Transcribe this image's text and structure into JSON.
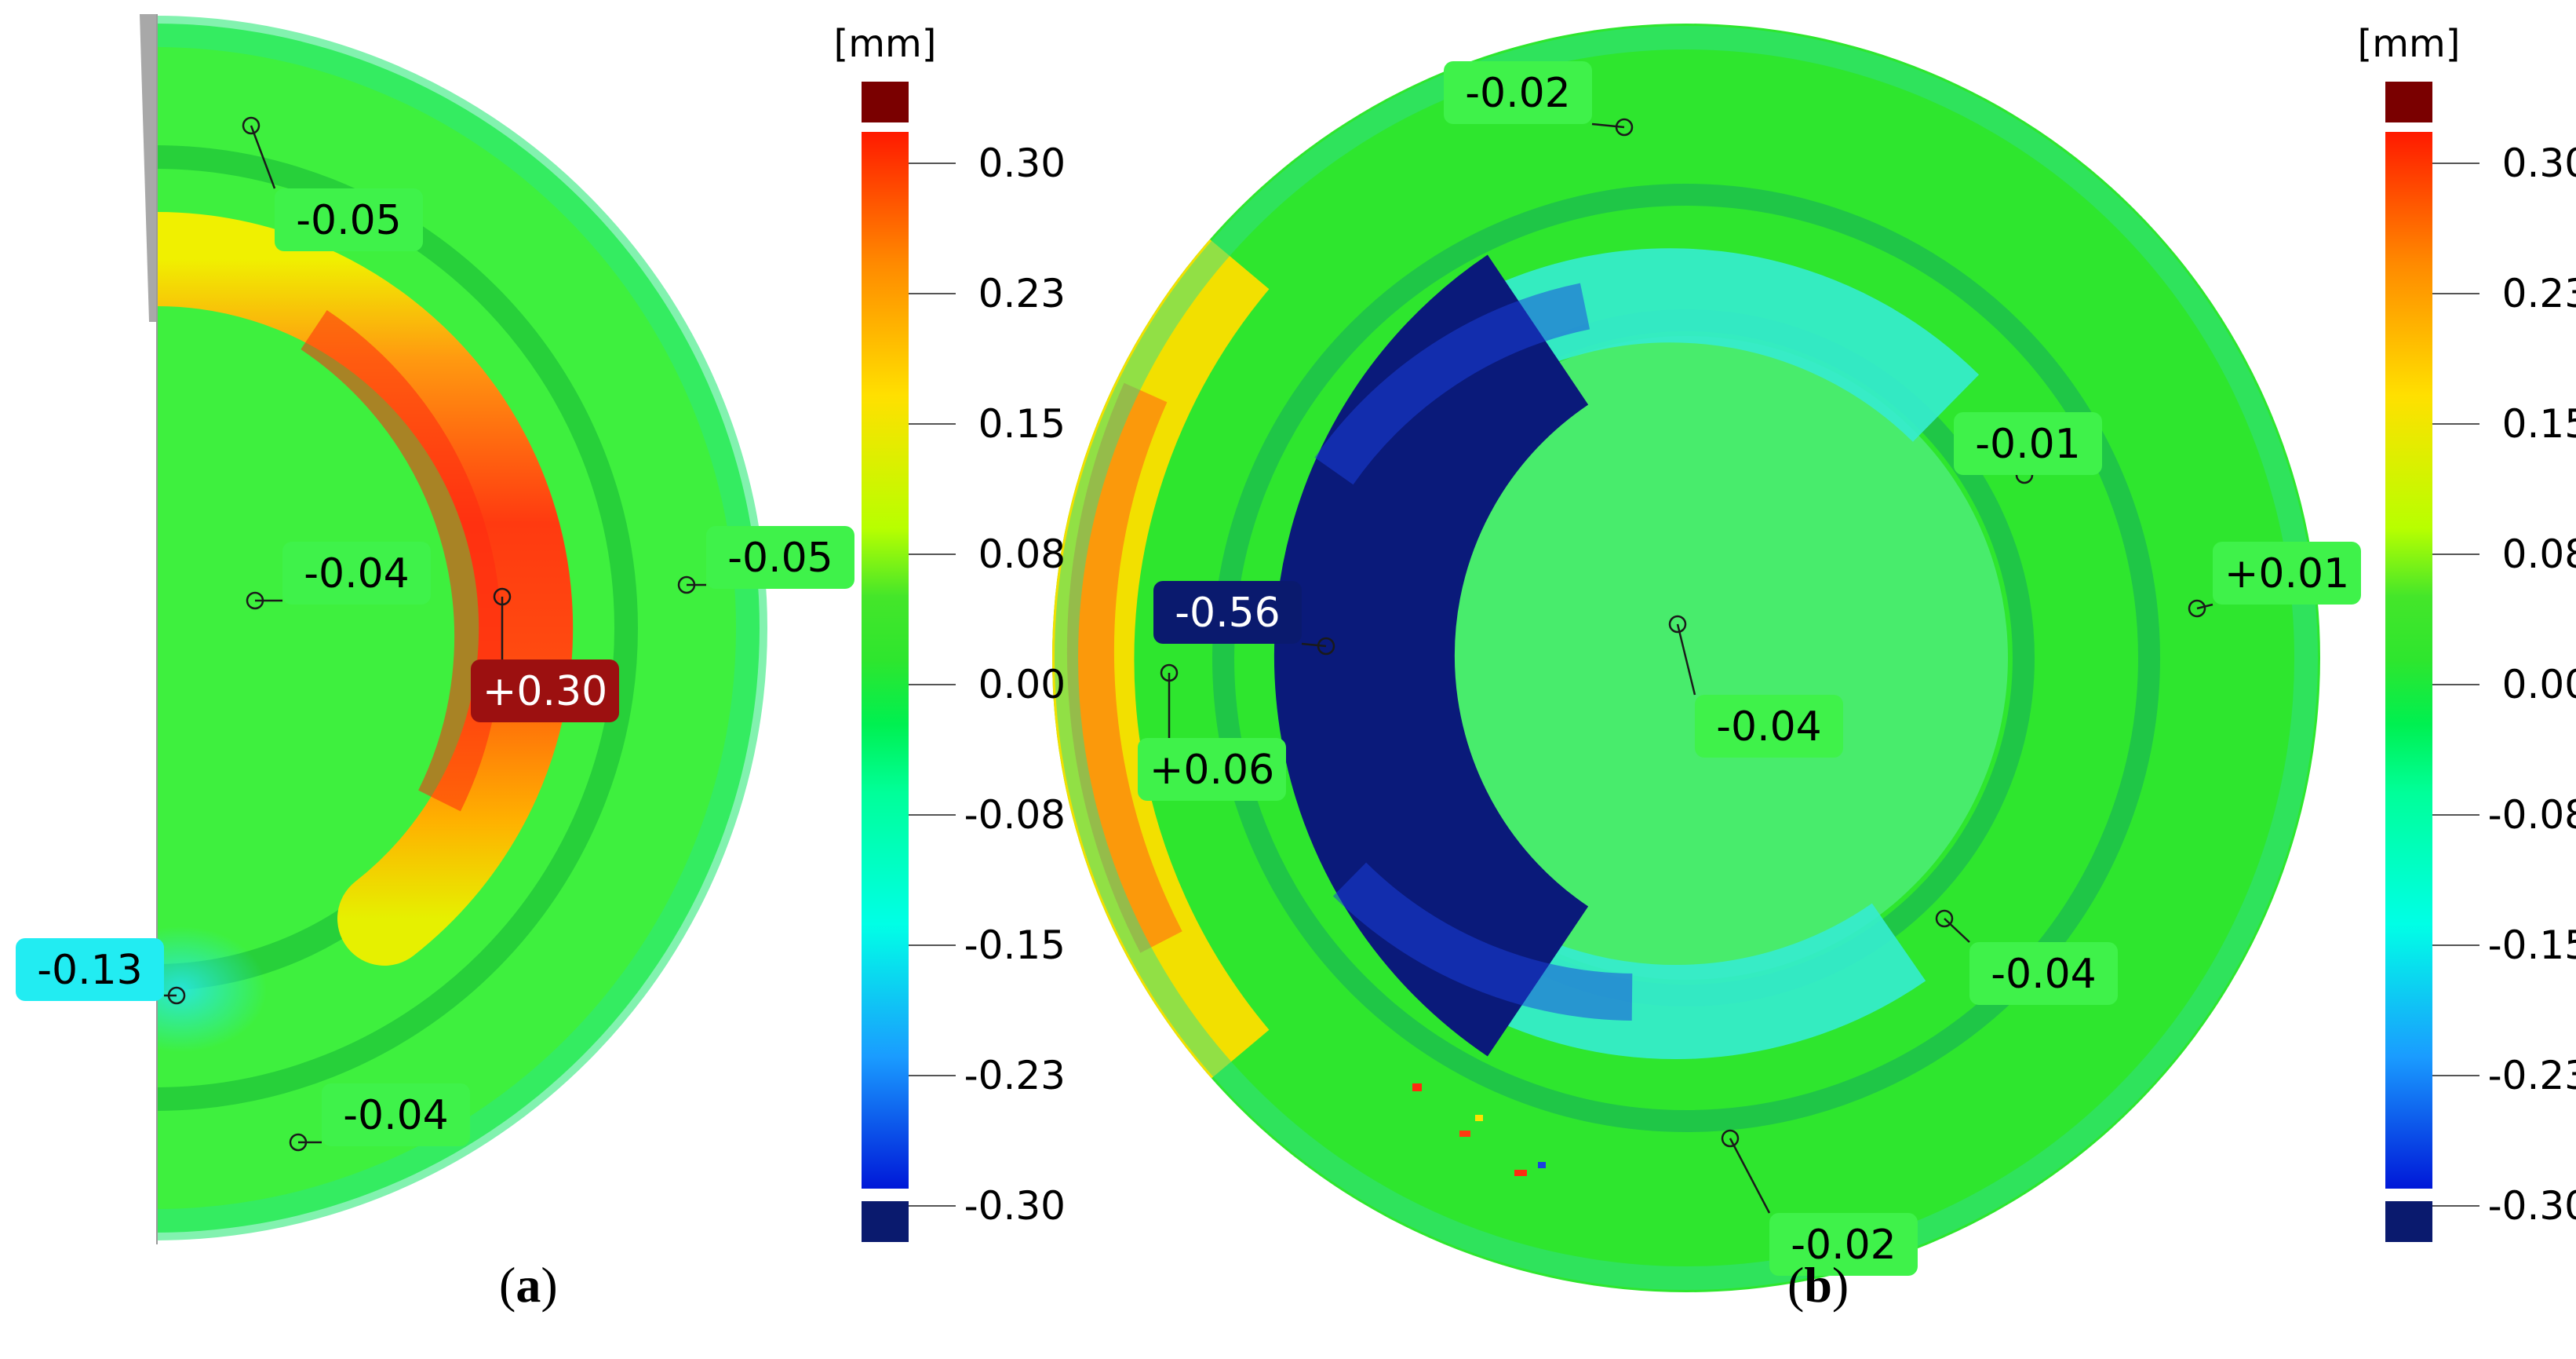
{
  "figure": {
    "unit": "[mm]",
    "scale_ticks": [
      "0.30",
      "0.23",
      "0.15",
      "0.08",
      "0.00",
      "-0.08",
      "-0.15",
      "-0.23",
      "-0.30"
    ],
    "colors": {
      "over": "#7a0000",
      "under": "#0a1a6e",
      "scale": [
        "#ff1a00",
        "#ff8a00",
        "#ffe000",
        "#b8ff00",
        "#2ee62e",
        "#00ff66",
        "#00ffe6",
        "#1a9cff",
        "#0018d8"
      ]
    },
    "panels": [
      {
        "caption_open": "(",
        "caption_letter": "a",
        "caption_close": ")",
        "labels": [
          {
            "text": "-0.05",
            "bg": "#3ff24a",
            "fg": "#000000"
          },
          {
            "text": "-0.04",
            "bg": "#3ff24a",
            "fg": "#000000"
          },
          {
            "text": "-0.05",
            "bg": "#3ff24a",
            "fg": "#000000"
          },
          {
            "text": "+0.30",
            "bg": "#9c1010",
            "fg": "#ffffff"
          },
          {
            "text": "-0.13",
            "bg": "#22ecf2",
            "fg": "#000000"
          },
          {
            "text": "-0.04",
            "bg": "#3ff24a",
            "fg": "#000000"
          }
        ]
      },
      {
        "caption_open": "(",
        "caption_letter": "b",
        "caption_close": ")",
        "labels": [
          {
            "text": "-0.02",
            "bg": "#3ff24a",
            "fg": "#000000"
          },
          {
            "text": "-0.01",
            "bg": "#3ff24a",
            "fg": "#000000"
          },
          {
            "text": "+0.01",
            "bg": "#3ff24a",
            "fg": "#000000"
          },
          {
            "text": "-0.56",
            "bg": "#0a1a6e",
            "fg": "#ffffff"
          },
          {
            "text": "+0.06",
            "bg": "#3ff24a",
            "fg": "#000000"
          },
          {
            "text": "-0.04",
            "bg": "#3ff24a",
            "fg": "#000000"
          },
          {
            "text": "-0.04",
            "bg": "#3ff24a",
            "fg": "#000000"
          },
          {
            "text": "-0.02",
            "bg": "#3ff24a",
            "fg": "#000000"
          }
        ]
      }
    ]
  }
}
